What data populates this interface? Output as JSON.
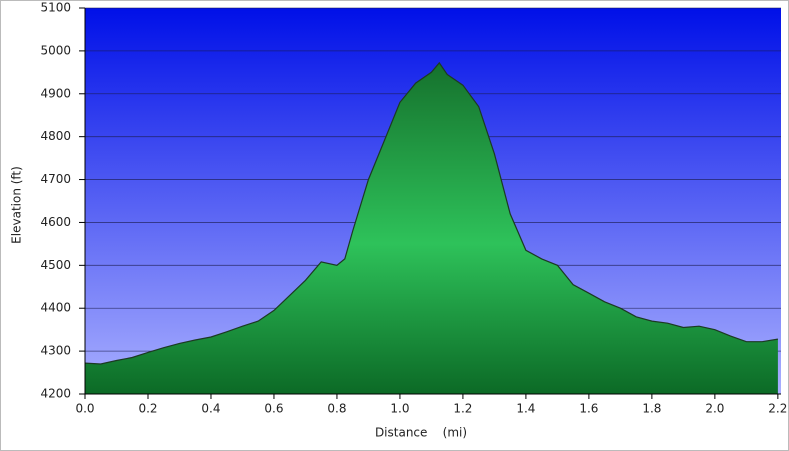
{
  "chart_data": {
    "type": "area",
    "x_label": "Distance    (mi)",
    "y_label": "Elevation (ft)",
    "xlim": [
      0,
      2.21
    ],
    "ylim": [
      4200,
      5100
    ],
    "xticks": [
      {
        "value": 0,
        "label": "0.0"
      },
      0.2,
      0.4,
      0.6,
      0.8,
      {
        "value": 1,
        "label": "1.0"
      },
      1.2,
      1.4,
      1.6,
      1.8,
      {
        "value": 2,
        "label": "2.0"
      },
      2.2
    ],
    "yticks": [
      4200,
      4300,
      4400,
      4500,
      4600,
      4700,
      4800,
      4900,
      5000,
      5100
    ],
    "grid": true,
    "color": "#22a845",
    "x": [
      0,
      0.05,
      0.1,
      0.15,
      0.2,
      0.25,
      0.3,
      0.35,
      0.4,
      0.45,
      0.5,
      0.55,
      0.6,
      0.65,
      0.7,
      0.75,
      0.8,
      0.825,
      0.85,
      0.9,
      0.95,
      1.0,
      1.05,
      1.1,
      1.125,
      1.15,
      1.2,
      1.25,
      1.3,
      1.35,
      1.4,
      1.45,
      1.5,
      1.55,
      1.6,
      1.65,
      1.7,
      1.75,
      1.8,
      1.85,
      1.9,
      1.95,
      2.0,
      2.05,
      2.1,
      2.15,
      2.2
    ],
    "values": [
      4272,
      4270,
      4278,
      4285,
      4297,
      4308,
      4318,
      4326,
      4333,
      4345,
      4358,
      4370,
      4395,
      4430,
      4465,
      4508,
      4500,
      4515,
      4580,
      4700,
      4790,
      4880,
      4925,
      4950,
      4972,
      4945,
      4920,
      4870,
      4760,
      4620,
      4535,
      4515,
      4500,
      4455,
      4435,
      4415,
      4400,
      4380,
      4370,
      4365,
      4355,
      4358,
      4350,
      4335,
      4322,
      4322,
      4328
    ]
  }
}
